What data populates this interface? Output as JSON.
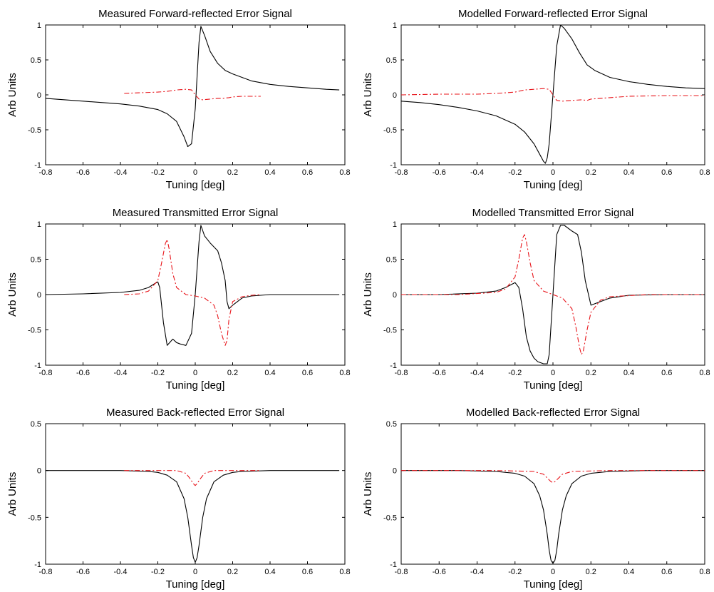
{
  "chart_data": [
    {
      "type": "line",
      "title": "Measured Forward-reflected Error Signal",
      "xlabel": "Tuning [deg]",
      "ylabel": "Arb Units",
      "xlim": [
        -0.8,
        0.8
      ],
      "ylim": [
        -1,
        1
      ],
      "xticks": [
        -0.8,
        -0.6,
        -0.4,
        -0.2,
        0,
        0.2,
        0.4,
        0.6,
        0.8
      ],
      "xtick_labels": [
        "-0.8",
        "-0.6",
        "-0.4",
        "-0.2",
        "0",
        "0.2",
        "0.4",
        "0.6",
        "0.8"
      ],
      "yticks": [
        -1,
        -0.5,
        0,
        0.5,
        1
      ],
      "ytick_labels": [
        "-1",
        "-0.5",
        "0",
        "0.5",
        "1"
      ],
      "grid": false,
      "series": [
        {
          "style": "solid",
          "color": "#000000",
          "x": [
            -0.8,
            -0.6,
            -0.4,
            -0.3,
            -0.2,
            -0.15,
            -0.1,
            -0.06,
            -0.04,
            -0.02,
            0,
            0.02,
            0.03,
            0.05,
            0.08,
            0.12,
            0.16,
            0.2,
            0.3,
            0.4,
            0.5,
            0.6,
            0.7,
            0.77
          ],
          "y": [
            -0.05,
            -0.09,
            -0.13,
            -0.16,
            -0.21,
            -0.27,
            -0.38,
            -0.6,
            -0.74,
            -0.7,
            -0.2,
            0.75,
            0.98,
            0.85,
            0.62,
            0.45,
            0.35,
            0.3,
            0.2,
            0.15,
            0.12,
            0.1,
            0.08,
            0.07
          ]
        },
        {
          "style": "dashdot",
          "color": "#e8141a",
          "x": [
            -0.38,
            -0.3,
            -0.2,
            -0.15,
            -0.1,
            -0.05,
            -0.02,
            0,
            0.02,
            0.04,
            0.08,
            0.12,
            0.15,
            0.18,
            0.2,
            0.25,
            0.3,
            0.35
          ],
          "y": [
            0.02,
            0.03,
            0.04,
            0.05,
            0.07,
            0.08,
            0.07,
            0.0,
            -0.06,
            -0.07,
            -0.06,
            -0.05,
            -0.05,
            -0.04,
            -0.03,
            -0.02,
            -0.02,
            -0.02
          ]
        }
      ]
    },
    {
      "type": "line",
      "title": "Modelled Forward-reflected Error Signal",
      "xlabel": "Tuning [deg]",
      "ylabel": "Arb Units",
      "xlim": [
        -0.8,
        0.8
      ],
      "ylim": [
        -1,
        1
      ],
      "xticks": [
        -0.8,
        -0.6,
        -0.4,
        -0.2,
        0,
        0.2,
        0.4,
        0.6,
        0.8
      ],
      "xtick_labels": [
        "-0.8",
        "-0.6",
        "-0.4",
        "-0.2",
        "0",
        "0.2",
        "0.4",
        "0.6",
        "0.8"
      ],
      "yticks": [
        -1,
        -0.5,
        0,
        0.5,
        1
      ],
      "ytick_labels": [
        "-1",
        "-0.5",
        "0",
        "0.5",
        "1"
      ],
      "grid": false,
      "series": [
        {
          "style": "solid",
          "color": "#000000",
          "x": [
            -0.8,
            -0.7,
            -0.6,
            -0.5,
            -0.4,
            -0.3,
            -0.2,
            -0.15,
            -0.1,
            -0.07,
            -0.05,
            -0.04,
            -0.03,
            -0.02,
            0,
            0.02,
            0.04,
            0.06,
            0.1,
            0.14,
            0.18,
            0.22,
            0.3,
            0.4,
            0.5,
            0.6,
            0.7,
            0.8
          ],
          "y": [
            -0.09,
            -0.11,
            -0.14,
            -0.18,
            -0.23,
            -0.3,
            -0.42,
            -0.53,
            -0.7,
            -0.85,
            -0.95,
            -0.98,
            -0.9,
            -0.7,
            0.0,
            0.7,
            1.0,
            0.95,
            0.8,
            0.6,
            0.43,
            0.35,
            0.25,
            0.19,
            0.15,
            0.12,
            0.1,
            0.09
          ]
        },
        {
          "style": "dashdot",
          "color": "#e8141a",
          "x": [
            -0.8,
            -0.6,
            -0.4,
            -0.3,
            -0.2,
            -0.15,
            -0.1,
            -0.05,
            -0.02,
            0,
            0.02,
            0.05,
            0.1,
            0.15,
            0.18,
            0.2,
            0.3,
            0.4,
            0.6,
            0.8
          ],
          "y": [
            0.0,
            0.01,
            0.01,
            0.02,
            0.04,
            0.07,
            0.08,
            0.09,
            0.08,
            0.0,
            -0.08,
            -0.09,
            -0.08,
            -0.07,
            -0.08,
            -0.06,
            -0.04,
            -0.02,
            -0.01,
            -0.01
          ]
        }
      ]
    },
    {
      "type": "line",
      "title": "Measured Transmitted Error Signal",
      "xlabel": "Tuning [deg]",
      "ylabel": "Arb Units",
      "xlim": [
        -0.8,
        0.8
      ],
      "ylim": [
        -1,
        1
      ],
      "xticks": [
        -0.8,
        -0.6,
        -0.4,
        -0.2,
        0,
        0.2,
        0.4,
        0.6,
        0.8
      ],
      "xtick_labels": [
        "-0.8",
        "-0.6",
        "-0.4",
        "-0.2",
        "0",
        "0.2",
        "0.4",
        "0.6",
        "0.8"
      ],
      "yticks": [
        -1,
        -0.5,
        0,
        0.5,
        1
      ],
      "ytick_labels": [
        "-1",
        "-0.5",
        "0",
        "0.5",
        "1"
      ],
      "grid": false,
      "series": [
        {
          "style": "solid",
          "color": "#000000",
          "x": [
            -0.8,
            -0.6,
            -0.4,
            -0.3,
            -0.25,
            -0.22,
            -0.2,
            -0.19,
            -0.17,
            -0.15,
            -0.12,
            -0.1,
            -0.08,
            -0.05,
            -0.02,
            0,
            0.02,
            0.03,
            0.05,
            0.08,
            0.12,
            0.14,
            0.16,
            0.17,
            0.18,
            0.2,
            0.25,
            0.3,
            0.4,
            0.6,
            0.77
          ],
          "y": [
            0.0,
            0.01,
            0.03,
            0.06,
            0.1,
            0.15,
            0.18,
            0.1,
            -0.4,
            -0.72,
            -0.63,
            -0.68,
            -0.7,
            -0.72,
            -0.55,
            0.0,
            0.75,
            0.98,
            0.83,
            0.73,
            0.62,
            0.45,
            0.2,
            -0.1,
            -0.2,
            -0.15,
            -0.05,
            -0.02,
            0.0,
            0.0,
            0.0
          ]
        },
        {
          "style": "dashdot",
          "color": "#e8141a",
          "x": [
            -0.38,
            -0.3,
            -0.25,
            -0.2,
            -0.18,
            -0.16,
            -0.15,
            -0.14,
            -0.12,
            -0.1,
            -0.05,
            0,
            0.05,
            0.1,
            0.12,
            0.14,
            0.16,
            0.17,
            0.18,
            0.2,
            0.25,
            0.3,
            0.35
          ],
          "y": [
            0.0,
            0.01,
            0.05,
            0.2,
            0.45,
            0.72,
            0.78,
            0.65,
            0.3,
            0.1,
            0.0,
            -0.02,
            -0.05,
            -0.15,
            -0.3,
            -0.55,
            -0.72,
            -0.65,
            -0.35,
            -0.1,
            -0.03,
            -0.01,
            0.0
          ]
        }
      ]
    },
    {
      "type": "line",
      "title": "Modelled Transmitted Error Signal",
      "xlabel": "Tuning [deg]",
      "ylabel": "Arb Units",
      "xlim": [
        -0.8,
        0.8
      ],
      "ylim": [
        -1,
        1
      ],
      "xticks": [
        -0.8,
        -0.6,
        -0.4,
        -0.2,
        0,
        0.2,
        0.4,
        0.6,
        0.8
      ],
      "xtick_labels": [
        "-0.8",
        "-0.6",
        "-0.4",
        "-0.2",
        "0",
        "0.2",
        "0.4",
        "0.6",
        "0.8"
      ],
      "yticks": [
        -1,
        -0.5,
        0,
        0.5,
        1
      ],
      "ytick_labels": [
        "-1",
        "-0.5",
        "0",
        "0.5",
        "1"
      ],
      "grid": false,
      "series": [
        {
          "style": "solid",
          "color": "#000000",
          "x": [
            -0.8,
            -0.6,
            -0.4,
            -0.3,
            -0.25,
            -0.2,
            -0.18,
            -0.16,
            -0.14,
            -0.12,
            -0.1,
            -0.08,
            -0.05,
            -0.03,
            -0.02,
            0,
            0.02,
            0.04,
            0.06,
            0.1,
            0.13,
            0.15,
            0.17,
            0.2,
            0.25,
            0.3,
            0.4,
            0.6,
            0.8
          ],
          "y": [
            0.0,
            0.0,
            0.02,
            0.05,
            0.1,
            0.17,
            0.1,
            -0.2,
            -0.6,
            -0.8,
            -0.9,
            -0.95,
            -0.98,
            -0.98,
            -0.85,
            0.0,
            0.85,
            0.98,
            0.98,
            0.9,
            0.85,
            0.6,
            0.2,
            -0.15,
            -0.1,
            -0.05,
            -0.01,
            0.0,
            0.0
          ]
        },
        {
          "style": "dashdot",
          "color": "#e8141a",
          "x": [
            -0.8,
            -0.5,
            -0.3,
            -0.25,
            -0.2,
            -0.18,
            -0.16,
            -0.15,
            -0.14,
            -0.12,
            -0.1,
            -0.05,
            0,
            0.05,
            0.1,
            0.12,
            0.14,
            0.15,
            0.16,
            0.18,
            0.2,
            0.25,
            0.3,
            0.5,
            0.8
          ],
          "y": [
            0.0,
            0.0,
            0.03,
            0.08,
            0.25,
            0.5,
            0.8,
            0.85,
            0.75,
            0.45,
            0.2,
            0.05,
            0.0,
            -0.05,
            -0.2,
            -0.45,
            -0.75,
            -0.85,
            -0.8,
            -0.5,
            -0.25,
            -0.08,
            -0.03,
            0.0,
            0.0
          ]
        }
      ]
    },
    {
      "type": "line",
      "title": "Measured Back-reflected Error Signal",
      "xlabel": "Tuning [deg]",
      "ylabel": "Arb Units",
      "xlim": [
        -0.8,
        0.8
      ],
      "ylim": [
        -1,
        0.5
      ],
      "xticks": [
        -0.8,
        -0.6,
        -0.4,
        -0.2,
        0,
        0.2,
        0.4,
        0.6,
        0.8
      ],
      "xtick_labels": [
        "-0.8",
        "-0.6",
        "-0.4",
        "-0.2",
        "0",
        "0.2",
        "0.4",
        "0.6",
        "0.8"
      ],
      "yticks": [
        -1,
        -0.5,
        0,
        0.5
      ],
      "ytick_labels": [
        "-1",
        "-0.5",
        "0",
        "0.5"
      ],
      "grid": false,
      "series": [
        {
          "style": "solid",
          "color": "#000000",
          "x": [
            -0.8,
            -0.4,
            -0.25,
            -0.2,
            -0.15,
            -0.1,
            -0.06,
            -0.04,
            -0.02,
            -0.01,
            0,
            0.01,
            0.02,
            0.04,
            0.06,
            0.1,
            0.15,
            0.2,
            0.25,
            0.4,
            0.77
          ],
          "y": [
            0.0,
            0.0,
            -0.01,
            -0.02,
            -0.05,
            -0.12,
            -0.3,
            -0.5,
            -0.8,
            -0.93,
            -0.98,
            -0.93,
            -0.8,
            -0.5,
            -0.3,
            -0.12,
            -0.05,
            -0.02,
            -0.01,
            0.0,
            0.0
          ]
        },
        {
          "style": "dashdot",
          "color": "#e8141a",
          "x": [
            -0.38,
            -0.2,
            -0.1,
            -0.05,
            -0.03,
            -0.01,
            0,
            0.01,
            0.03,
            0.05,
            0.1,
            0.2,
            0.35
          ],
          "y": [
            0.0,
            0.0,
            0.0,
            -0.03,
            -0.08,
            -0.14,
            -0.16,
            -0.14,
            -0.08,
            -0.03,
            0.0,
            0.0,
            0.0
          ]
        }
      ]
    },
    {
      "type": "line",
      "title": "Modelled Back-reflected Error Signal",
      "xlabel": "Tuning [deg]",
      "ylabel": "Arb Units",
      "xlim": [
        -0.8,
        0.8
      ],
      "ylim": [
        -1,
        0.5
      ],
      "xticks": [
        -0.8,
        -0.6,
        -0.4,
        -0.2,
        0,
        0.2,
        0.4,
        0.6,
        0.8
      ],
      "xtick_labels": [
        "-0.8",
        "-0.6",
        "-0.4",
        "-0.2",
        "0",
        "0.2",
        "0.4",
        "0.6",
        "0.8"
      ],
      "yticks": [
        -1,
        -0.5,
        0,
        0.5
      ],
      "ytick_labels": [
        "-1",
        "-0.5",
        "0",
        "0.5"
      ],
      "grid": false,
      "series": [
        {
          "style": "solid",
          "color": "#000000",
          "x": [
            -0.8,
            -0.5,
            -0.3,
            -0.2,
            -0.15,
            -0.1,
            -0.07,
            -0.05,
            -0.03,
            -0.02,
            -0.01,
            0,
            0.01,
            0.02,
            0.03,
            0.05,
            0.07,
            0.1,
            0.15,
            0.2,
            0.3,
            0.5,
            0.8
          ],
          "y": [
            0.0,
            0.0,
            -0.01,
            -0.03,
            -0.06,
            -0.14,
            -0.27,
            -0.42,
            -0.68,
            -0.85,
            -0.96,
            -0.99,
            -0.96,
            -0.85,
            -0.68,
            -0.42,
            -0.27,
            -0.14,
            -0.06,
            -0.03,
            -0.01,
            0.0,
            0.0
          ]
        },
        {
          "style": "dashdot",
          "color": "#e8141a",
          "x": [
            -0.8,
            -0.3,
            -0.1,
            -0.05,
            -0.03,
            -0.01,
            0,
            0.01,
            0.03,
            0.05,
            0.1,
            0.3,
            0.8
          ],
          "y": [
            0.0,
            0.0,
            -0.01,
            -0.04,
            -0.08,
            -0.12,
            -0.13,
            -0.12,
            -0.08,
            -0.04,
            -0.01,
            0.0,
            0.0
          ]
        }
      ]
    }
  ]
}
